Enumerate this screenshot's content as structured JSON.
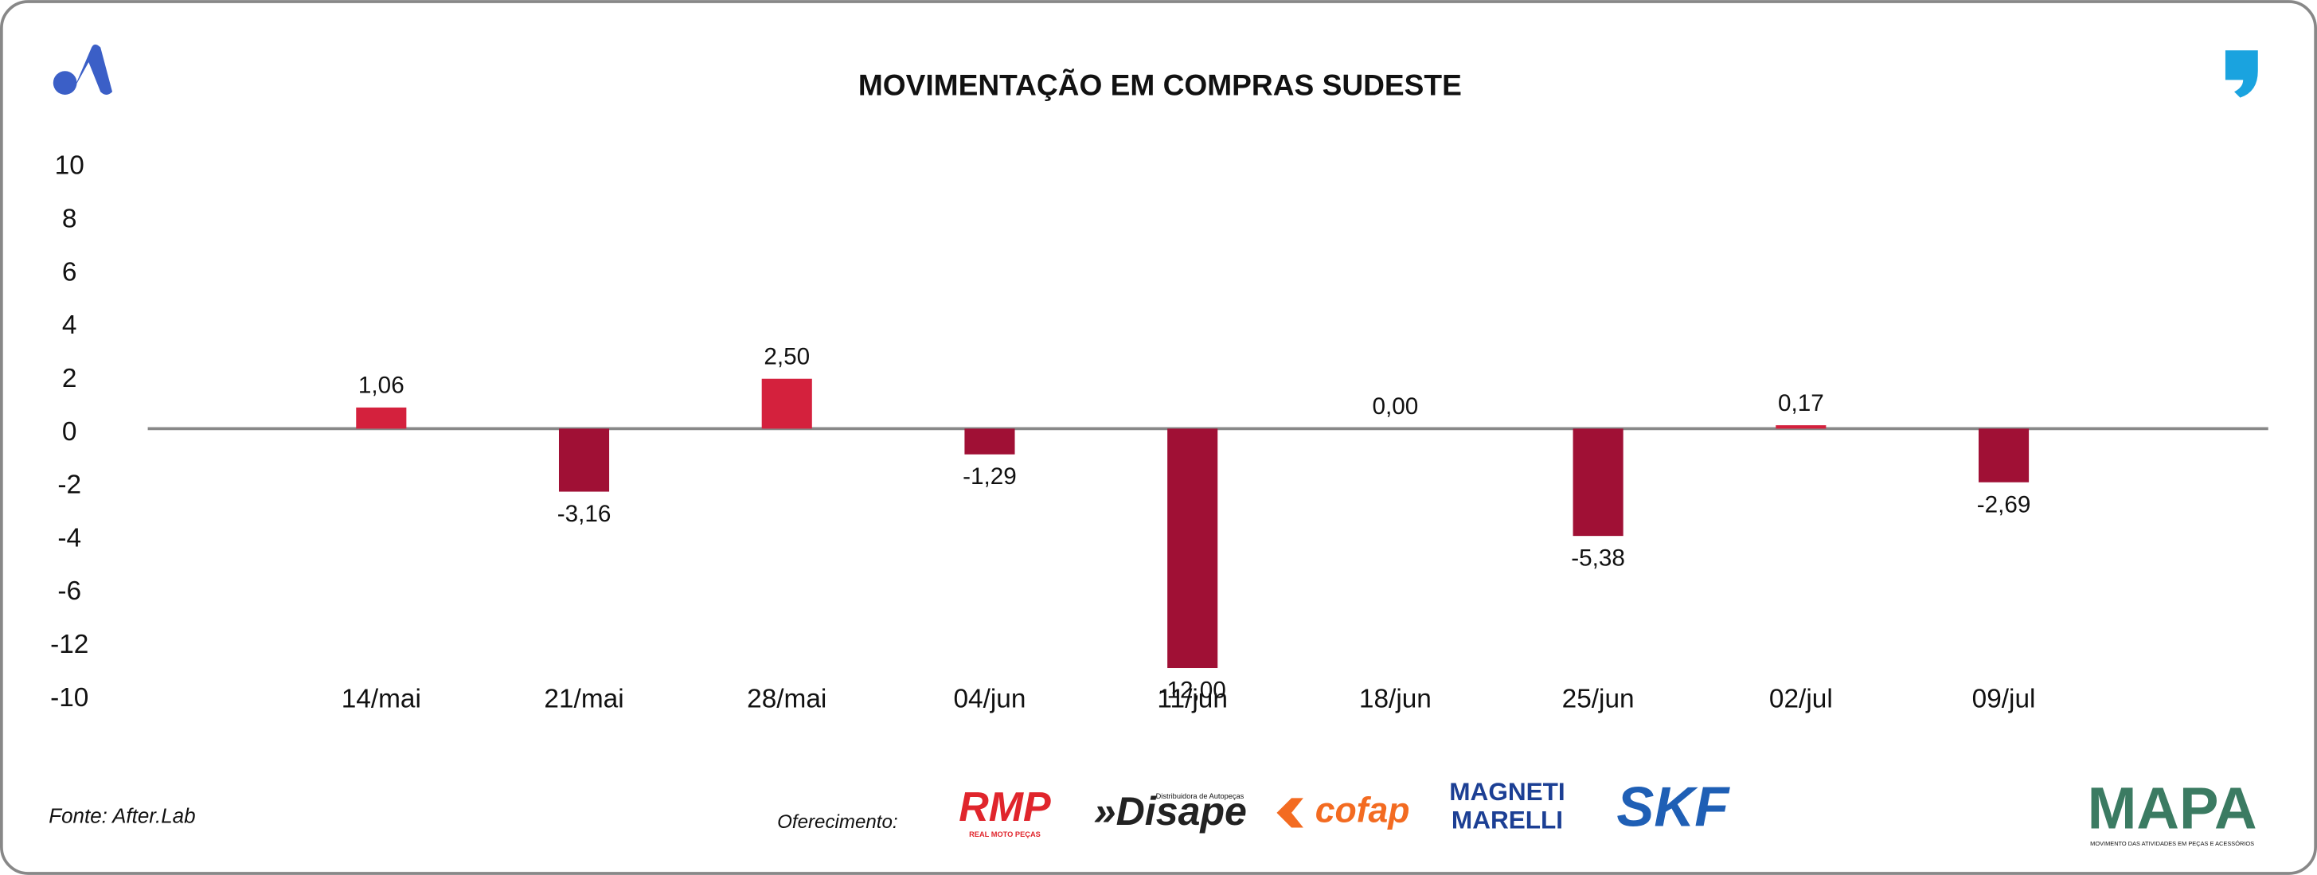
{
  "chart_data": {
    "type": "bar",
    "title": "MOVIMENTAÇÃO EM COMPRAS SUDESTE",
    "y_axis_labels": [
      "10",
      "8",
      "6",
      "4",
      "2",
      "0",
      "-2",
      "-4",
      "-6",
      "-12",
      "-10"
    ],
    "categories": [
      "14/mai",
      "21/mai",
      "28/mai",
      "04/jun",
      "11/jun",
      "18/jun",
      "25/jun",
      "02/jul",
      "09/jul"
    ],
    "values": [
      1.06,
      -3.16,
      2.5,
      -1.29,
      -12.0,
      0.0,
      -5.38,
      0.17,
      -2.69
    ],
    "value_labels": [
      "1,06",
      "-3,16",
      "2,50",
      "-1,29",
      "-12,00",
      "0,00",
      "-5,38",
      "0,17",
      "-2,69"
    ],
    "positive_color": "#d4213d",
    "negative_color": "#a01035"
  },
  "footer": {
    "source": "Fonte: After.Lab",
    "sponsor_intro": "Oferecimento:",
    "sponsors": {
      "rmp": "RMP",
      "rmp_sub": "REAL MOTO PEÇAS",
      "disape_sub": "Distribuidora de Autopeças",
      "disape": "»Disape",
      "cofap": "cofap",
      "magneti": "MAGNETI",
      "marelli": "MARELLI",
      "skf": "SKF"
    },
    "brand": "MAPA",
    "brand_sub": "MOVIMENTO DAS ATIVIDADES EM PEÇAS E ACESSÓRIOS"
  }
}
